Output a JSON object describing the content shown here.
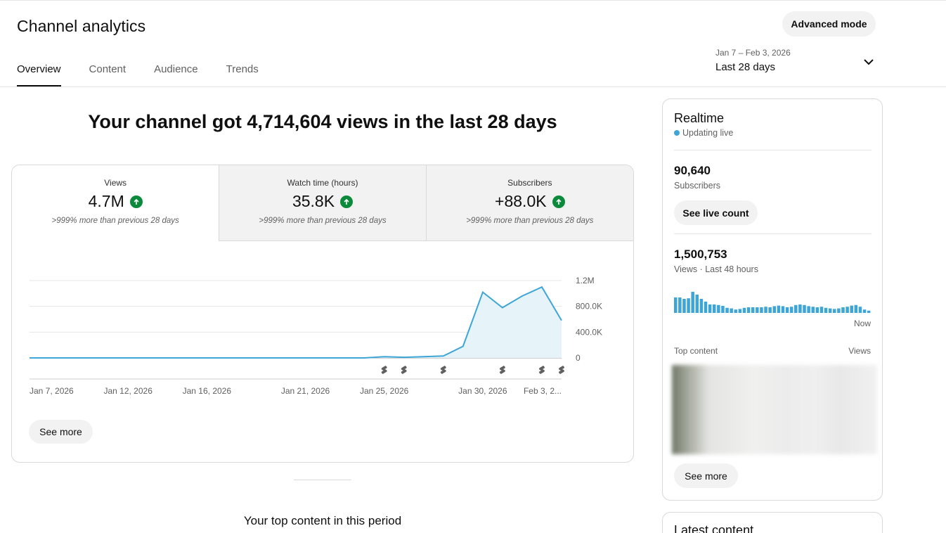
{
  "header": {
    "title": "Channel analytics",
    "advanced_mode_label": "Advanced mode",
    "tabs": [
      {
        "label": "Overview",
        "active": true
      },
      {
        "label": "Content",
        "active": false
      },
      {
        "label": "Audience",
        "active": false
      },
      {
        "label": "Trends",
        "active": false
      }
    ],
    "date_range": "Jan 7 – Feb 3, 2026",
    "date_label": "Last 28 days"
  },
  "main": {
    "headline": "Your channel got 4,714,604 views in the last 28 days",
    "metrics": [
      {
        "label": "Views",
        "value": "4.7M",
        "sub": ">999% more than previous 28 days"
      },
      {
        "label": "Watch time (hours)",
        "value": "35.8K",
        "sub": ">999% more than previous 28 days"
      },
      {
        "label": "Subscribers",
        "value": "+88.0K",
        "sub": ">999% more than previous 28 days"
      }
    ],
    "see_more_label": "See more",
    "top_content_title": "Your top content in this period"
  },
  "chart_data": {
    "type": "area",
    "series": [
      {
        "x": [
          "2026-01-07",
          "2026-01-08",
          "2026-01-09",
          "2026-01-10",
          "2026-01-11",
          "2026-01-12",
          "2026-01-13",
          "2026-01-14",
          "2026-01-15",
          "2026-01-16",
          "2026-01-17",
          "2026-01-18",
          "2026-01-19",
          "2026-01-20",
          "2026-01-21",
          "2026-01-22",
          "2026-01-23",
          "2026-01-24",
          "2026-01-25",
          "2026-01-26",
          "2026-01-27",
          "2026-01-28",
          "2026-01-29",
          "2026-01-30",
          "2026-01-31",
          "2026-02-01",
          "2026-02-02",
          "2026-02-03"
        ],
        "values": [
          0,
          0,
          0,
          0,
          0,
          0,
          0,
          0,
          0,
          0,
          0,
          0,
          0,
          0,
          0,
          0,
          0,
          0,
          20000,
          10000,
          20000,
          30000,
          180000,
          1020000,
          780000,
          960000,
          1100000,
          580000
        ]
      }
    ],
    "x_tick_labels": [
      "Jan 7, 2026",
      "Jan 12, 2026",
      "Jan 16, 2026",
      "Jan 21, 2026",
      "Jan 25, 2026",
      "Jan 30, 2026",
      "Feb 3, 2..."
    ],
    "x_tick_dates": [
      "2026-01-07",
      "2026-01-12",
      "2026-01-16",
      "2026-01-21",
      "2026-01-25",
      "2026-01-30",
      "2026-02-03"
    ],
    "y_tick_labels": [
      "0",
      "400.0K",
      "800.0K",
      "1.2M"
    ],
    "y_tick_values": [
      0,
      400000,
      800000,
      1200000
    ],
    "ylim": [
      0,
      1200000
    ],
    "marker_dates": [
      "2026-01-25",
      "2026-01-26",
      "2026-01-28",
      "2026-01-31",
      "2026-02-02",
      "2026-02-03"
    ],
    "marker_icon": "shorts-icon",
    "grid": true,
    "color": "#3ea6d6",
    "fill": "#e6f4fa"
  },
  "realtime": {
    "title": "Realtime",
    "live_label": "Updating live",
    "subscribers_value": "90,640",
    "subscribers_label": "Subscribers",
    "live_count_label": "See live count",
    "views_value": "1,500,753",
    "views_label": "Views · Last 48 hours",
    "bars": [
      0.55,
      0.55,
      0.5,
      0.52,
      0.75,
      0.65,
      0.5,
      0.4,
      0.3,
      0.3,
      0.28,
      0.25,
      0.18,
      0.16,
      0.12,
      0.14,
      0.18,
      0.2,
      0.2,
      0.2,
      0.2,
      0.22,
      0.2,
      0.24,
      0.26,
      0.24,
      0.2,
      0.22,
      0.28,
      0.3,
      0.28,
      0.24,
      0.22,
      0.2,
      0.22,
      0.18,
      0.16,
      0.14,
      0.16,
      0.2,
      0.22,
      0.26,
      0.28,
      0.22,
      0.12,
      0.08
    ],
    "now_label": "Now",
    "top_content_label": "Top content",
    "views_col_label": "Views",
    "see_more_label": "See more",
    "bar_color": "#3ea6d6"
  },
  "latest": {
    "title": "Latest content"
  }
}
